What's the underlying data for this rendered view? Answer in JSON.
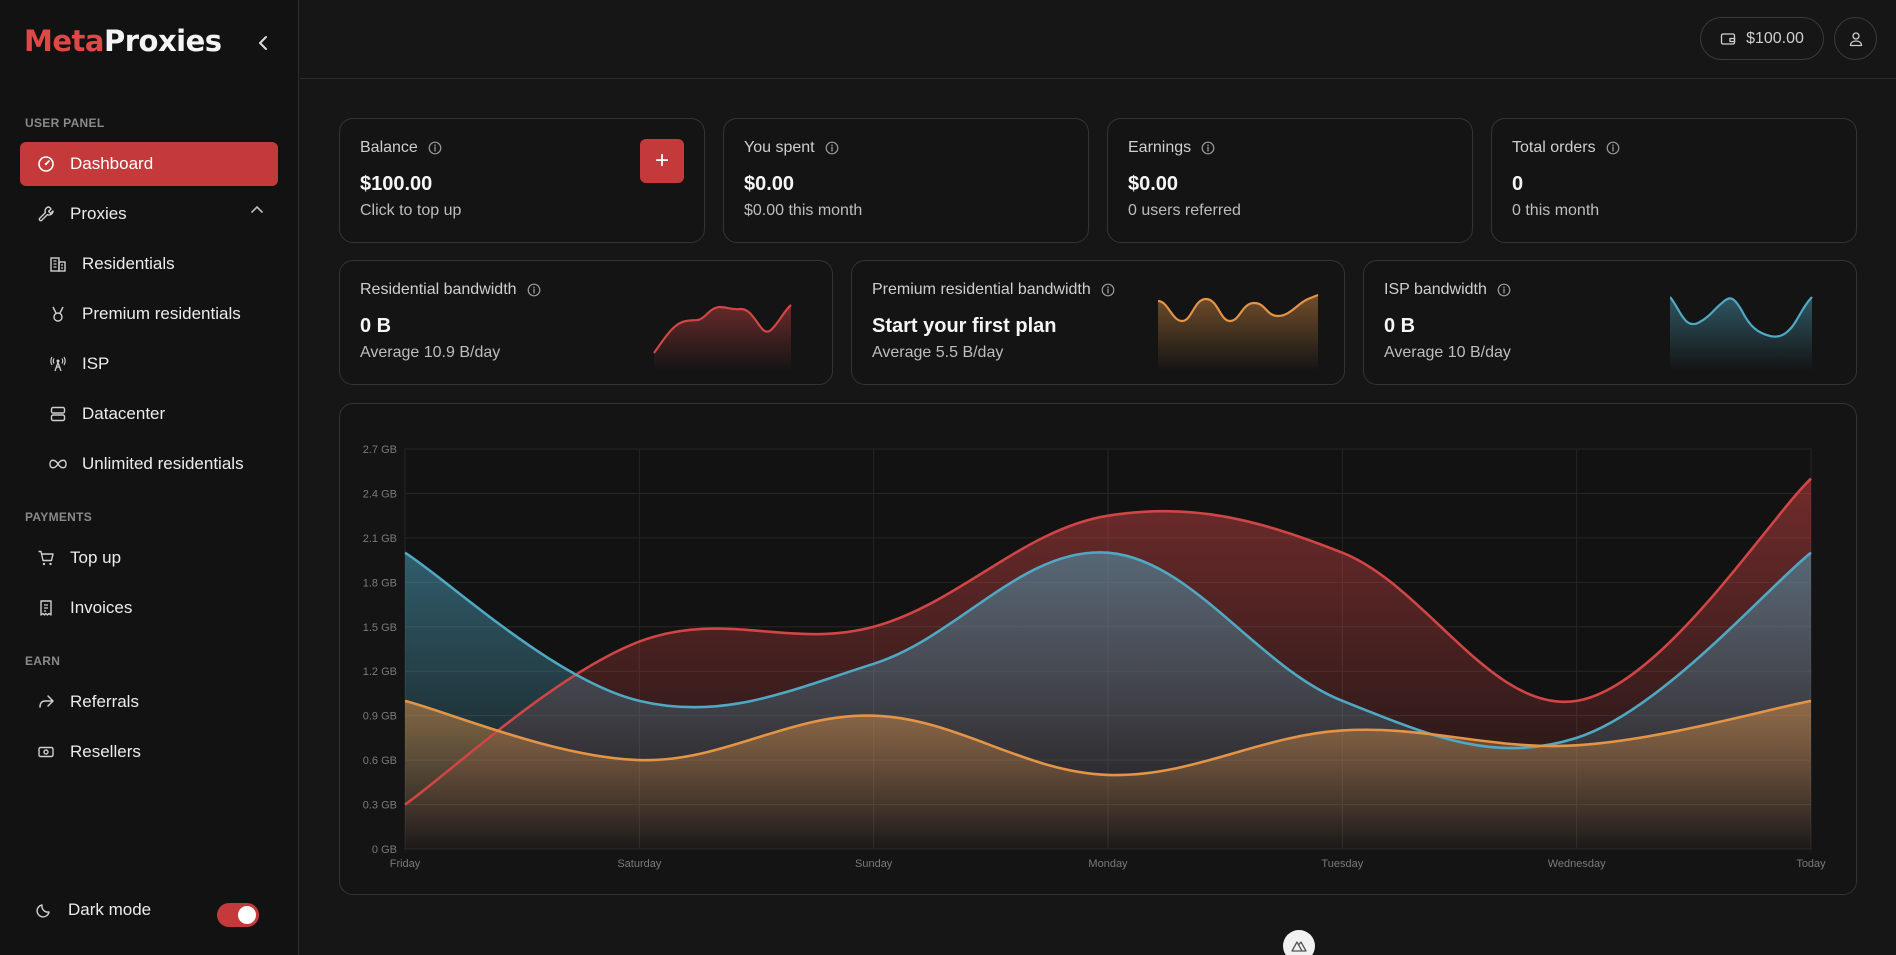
{
  "brand": {
    "part1": "Meta",
    "part2": "Proxies"
  },
  "sidebar": {
    "sections": {
      "user_panel": "USER PANEL",
      "payments": "PAYMENTS",
      "earn": "EARN"
    },
    "items": {
      "dashboard": "Dashboard",
      "proxies": "Proxies",
      "residentials": "Residentials",
      "premium": "Premium residentials",
      "isp": "ISP",
      "datacenter": "Datacenter",
      "unlimited": "Unlimited residentials",
      "topup": "Top up",
      "invoices": "Invoices",
      "referrals": "Referrals",
      "resellers": "Resellers"
    },
    "dark_mode": {
      "label": "Dark mode",
      "enabled": true
    }
  },
  "topbar": {
    "balance": "$100.00"
  },
  "stats": {
    "balance": {
      "label": "Balance",
      "value": "$100.00",
      "sub": "Click to top up",
      "action": "+"
    },
    "spent": {
      "label": "You spent",
      "value": "$0.00",
      "sub": "$0.00 this month"
    },
    "earnings": {
      "label": "Earnings",
      "value": "$0.00",
      "sub": "0 users referred"
    },
    "orders": {
      "label": "Total orders",
      "value": "0",
      "sub": "0 this month"
    }
  },
  "bandwidth": {
    "residential": {
      "label": "Residential bandwidth",
      "value": "0 B",
      "sub": "Average 10.9 B/day",
      "color": "#d04545"
    },
    "premium": {
      "label": "Premium residential bandwidth",
      "value": "Start your first plan",
      "sub": "Average 5.5 B/day",
      "color": "#e39447"
    },
    "isp": {
      "label": "ISP bandwidth",
      "value": "0 B",
      "sub": "Average 10 B/day",
      "color": "#4fa8c4"
    }
  },
  "colors": {
    "accent": "#c43a3a",
    "red": "#d04545",
    "orange": "#e39447",
    "blue": "#4fa8c4"
  },
  "chart_data": {
    "type": "area",
    "categories": [
      "Friday",
      "Saturday",
      "Sunday",
      "Monday",
      "Tuesday",
      "Wednesday",
      "Today"
    ],
    "y_ticks": [
      "0 GB",
      "0.3 GB",
      "0.6 GB",
      "0.9 GB",
      "1.2 GB",
      "1.5 GB",
      "1.8 GB",
      "2.1 GB",
      "2.4 GB",
      "2.7 GB"
    ],
    "ylim": [
      0,
      2.7
    ],
    "unit": "GB",
    "grid": true,
    "series": [
      {
        "values": [
          0.3,
          1.4,
          1.5,
          2.25,
          2.0,
          1.0,
          2.5
        ],
        "color": "#d04545"
      },
      {
        "values": [
          2.0,
          1.0,
          1.25,
          2.0,
          1.0,
          0.75,
          2.0
        ],
        "color": "#4fa8c4"
      },
      {
        "values": [
          1.0,
          0.6,
          0.9,
          0.5,
          0.8,
          0.7,
          1.0
        ],
        "color": "#e39447"
      }
    ]
  }
}
